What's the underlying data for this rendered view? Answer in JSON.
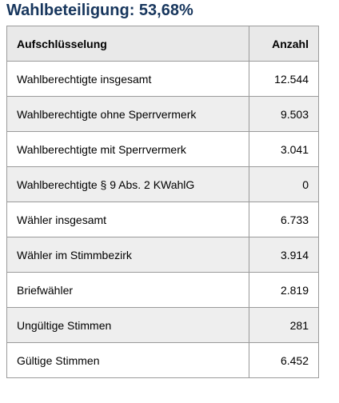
{
  "title": "Wahlbeteiligung: 53,68%",
  "table": {
    "headers": [
      "Aufschlüsselung",
      "Anzahl"
    ],
    "rows": [
      {
        "label": "Wahlberechtigte insgesamt",
        "value": "12.544"
      },
      {
        "label": "Wahlberechtigte ohne Sperrvermerk",
        "value": "9.503"
      },
      {
        "label": "Wahlberechtigte mit Sperrvermerk",
        "value": "3.041"
      },
      {
        "label": "Wahlberechtigte § 9 Abs. 2 KWahlG",
        "value": "0"
      },
      {
        "label": "Wähler insgesamt",
        "value": "6.733"
      },
      {
        "label": "Wähler im Stimmbezirk",
        "value": "3.914"
      },
      {
        "label": "Briefwähler",
        "value": "2.819"
      },
      {
        "label": "Ungültige Stimmen",
        "value": "281"
      },
      {
        "label": "Gültige Stimmen",
        "value": "6.452"
      }
    ]
  }
}
